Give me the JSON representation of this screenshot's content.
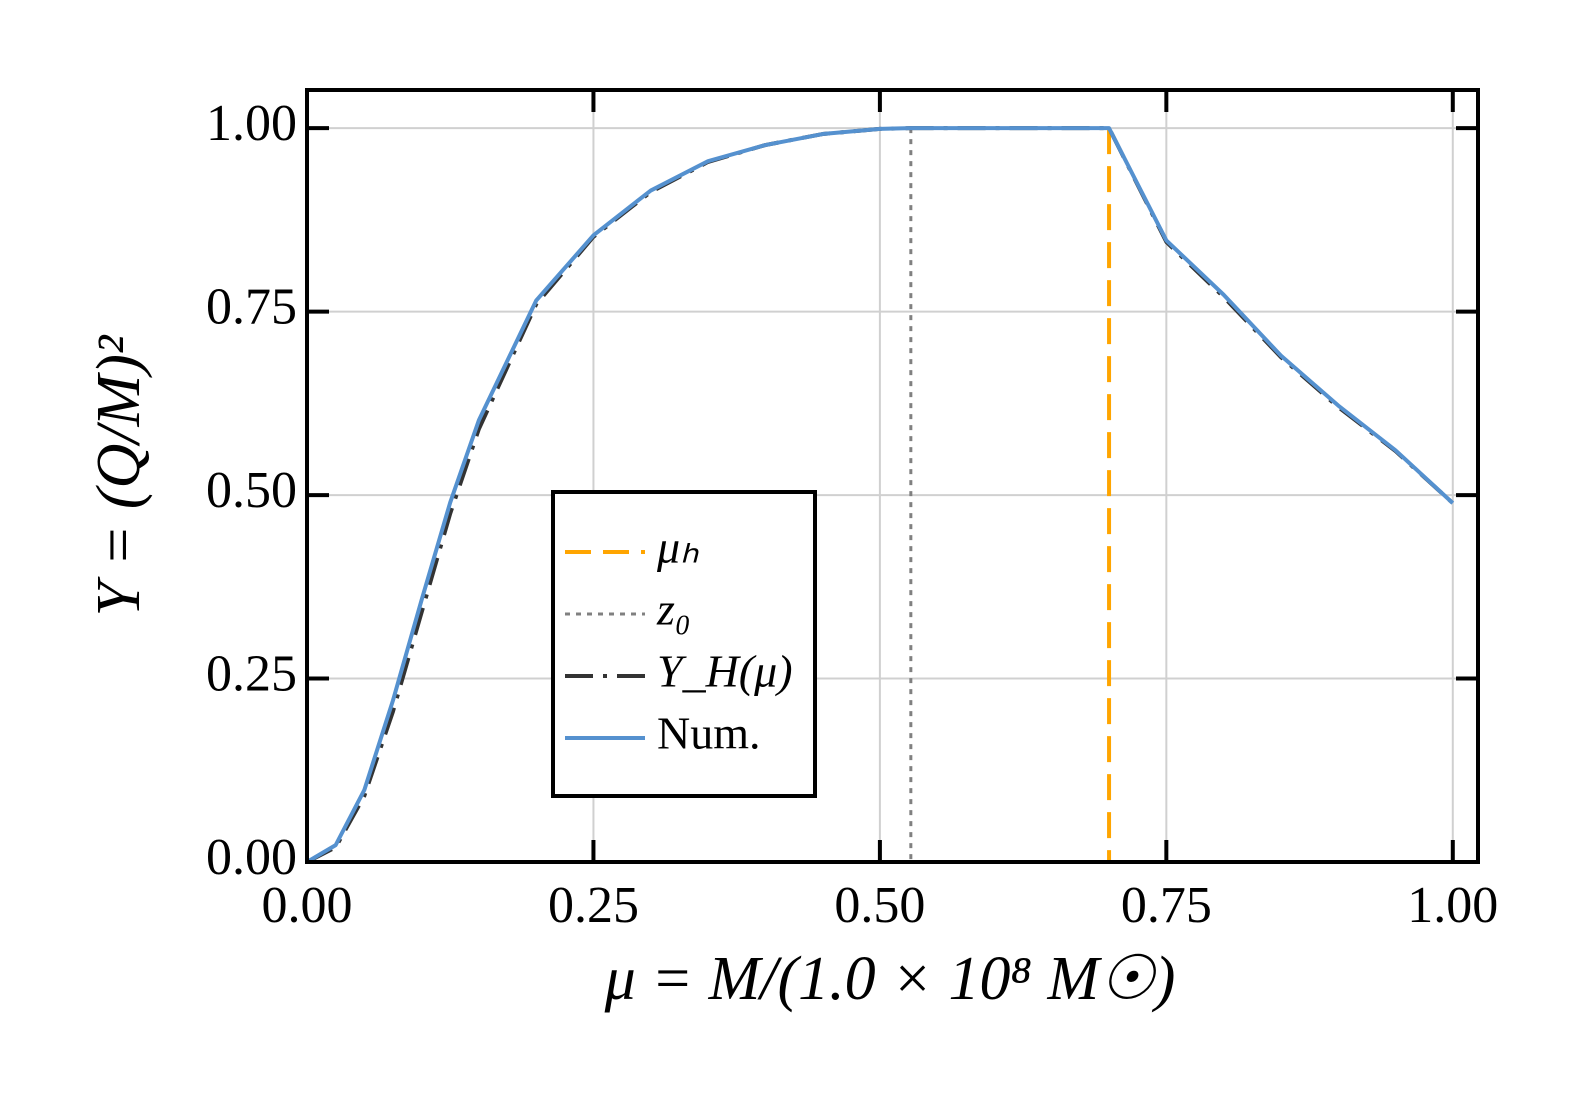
{
  "chart_data": {
    "type": "line",
    "xlabel": "μ = M/(1.0 × 10⁸ M☉)",
    "ylabel": "Y = (Q/M)²",
    "xlim": [
      0,
      1.022
    ],
    "ylim": [
      0,
      1.052
    ],
    "xticks": [
      {
        "value": 0,
        "label": "0.00"
      },
      {
        "value": 0.25,
        "label": "0.25"
      },
      {
        "value": 0.5,
        "label": "0.50"
      },
      {
        "value": 0.75,
        "label": "0.75"
      },
      {
        "value": 1,
        "label": "1.00"
      }
    ],
    "yticks": [
      {
        "value": 0,
        "label": "0.00"
      },
      {
        "value": 0.25,
        "label": "0.25"
      },
      {
        "value": 0.5,
        "label": "0.50"
      },
      {
        "value": 0.75,
        "label": "0.75"
      },
      {
        "value": 1,
        "label": "1.00"
      }
    ],
    "grid": true,
    "vlines": [
      {
        "name": "μₕ",
        "x": 0.7,
        "color": "#ffa500",
        "style": "dashed"
      },
      {
        "name": "z₀",
        "x": 0.527,
        "color": "#808080",
        "style": "dotted"
      }
    ],
    "x": [
      0,
      0.025,
      0.05,
      0.075,
      0.1,
      0.125,
      0.15,
      0.2,
      0.25,
      0.3,
      0.35,
      0.4,
      0.45,
      0.5,
      0.527,
      0.6,
      0.7,
      0.75,
      0.8,
      0.85,
      0.9,
      0.95,
      1.0
    ],
    "series": [
      {
        "name": "Y_H(μ)",
        "color": "#333333",
        "style": "dashdot",
        "values": [
          0,
          0.02,
          0.09,
          0.205,
          0.34,
          0.475,
          0.59,
          0.76,
          0.852,
          0.913,
          0.954,
          0.977,
          0.992,
          0.999,
          1,
          1,
          1,
          0.845,
          0.77,
          0.688,
          0.62,
          0.56,
          0.489
        ]
      },
      {
        "name": "Num.",
        "color": "#5591cf",
        "style": "solid",
        "values": [
          0,
          0.023,
          0.098,
          0.22,
          0.357,
          0.49,
          0.602,
          0.765,
          0.854,
          0.915,
          0.955,
          0.977,
          0.992,
          0.999,
          1,
          1,
          1,
          0.847,
          0.773,
          0.69,
          0.622,
          0.561,
          0.489
        ]
      }
    ]
  }
}
